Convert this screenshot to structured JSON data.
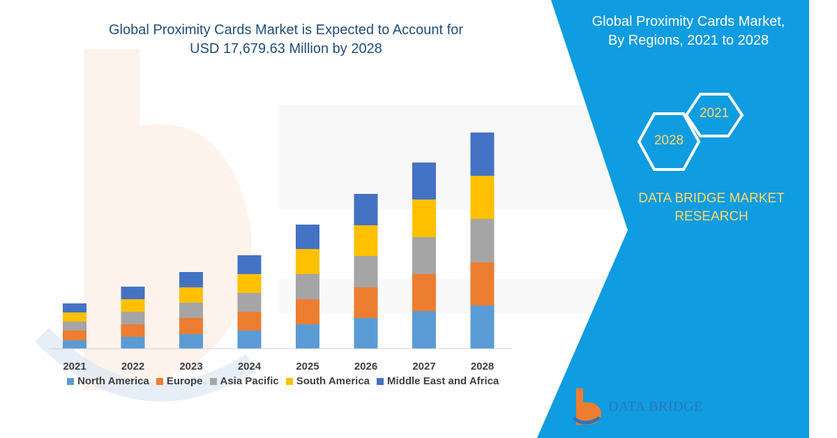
{
  "chart_data": {
    "type": "bar",
    "stacked": true,
    "title_lines": [
      "Global Proximity Cards Market is Expected to Account for",
      "USD 17,679.63 Million by 2028"
    ],
    "categories": [
      "2021",
      "2022",
      "2023",
      "2024",
      "2025",
      "2026",
      "2027",
      "2028"
    ],
    "series": [
      {
        "name": "North America",
        "color": "#5b9bd5",
        "values": [
          12,
          17,
          21,
          26,
          35,
          44,
          54,
          62
        ]
      },
      {
        "name": "Europe",
        "color": "#ed7d31",
        "values": [
          14,
          18,
          23,
          27,
          36,
          44,
          53,
          62
        ]
      },
      {
        "name": "Asia Pacific",
        "color": "#a5a5a5",
        "values": [
          13,
          18,
          22,
          27,
          36,
          45,
          53,
          62
        ]
      },
      {
        "name": "South America",
        "color": "#ffc000",
        "values": [
          13,
          18,
          22,
          27,
          36,
          44,
          54,
          62
        ]
      },
      {
        "name": "Middle East and Africa",
        "color": "#4472c4",
        "values": [
          13,
          18,
          22,
          27,
          35,
          45,
          53,
          62
        ]
      }
    ],
    "ylim": [
      0,
      330
    ],
    "legend_position": "bottom",
    "grid": false
  },
  "panel": {
    "title_lines": [
      "Global Proximity Cards Market,",
      "By Regions, 2021 to 2028"
    ],
    "hex_year_start": "2021",
    "hex_year_end": "2028",
    "brand_lines": [
      "DATA BRIDGE MARKET",
      "RESEARCH"
    ],
    "color": "#0f9ce0"
  },
  "logo": {
    "name": "DATA BRIDGE"
  }
}
